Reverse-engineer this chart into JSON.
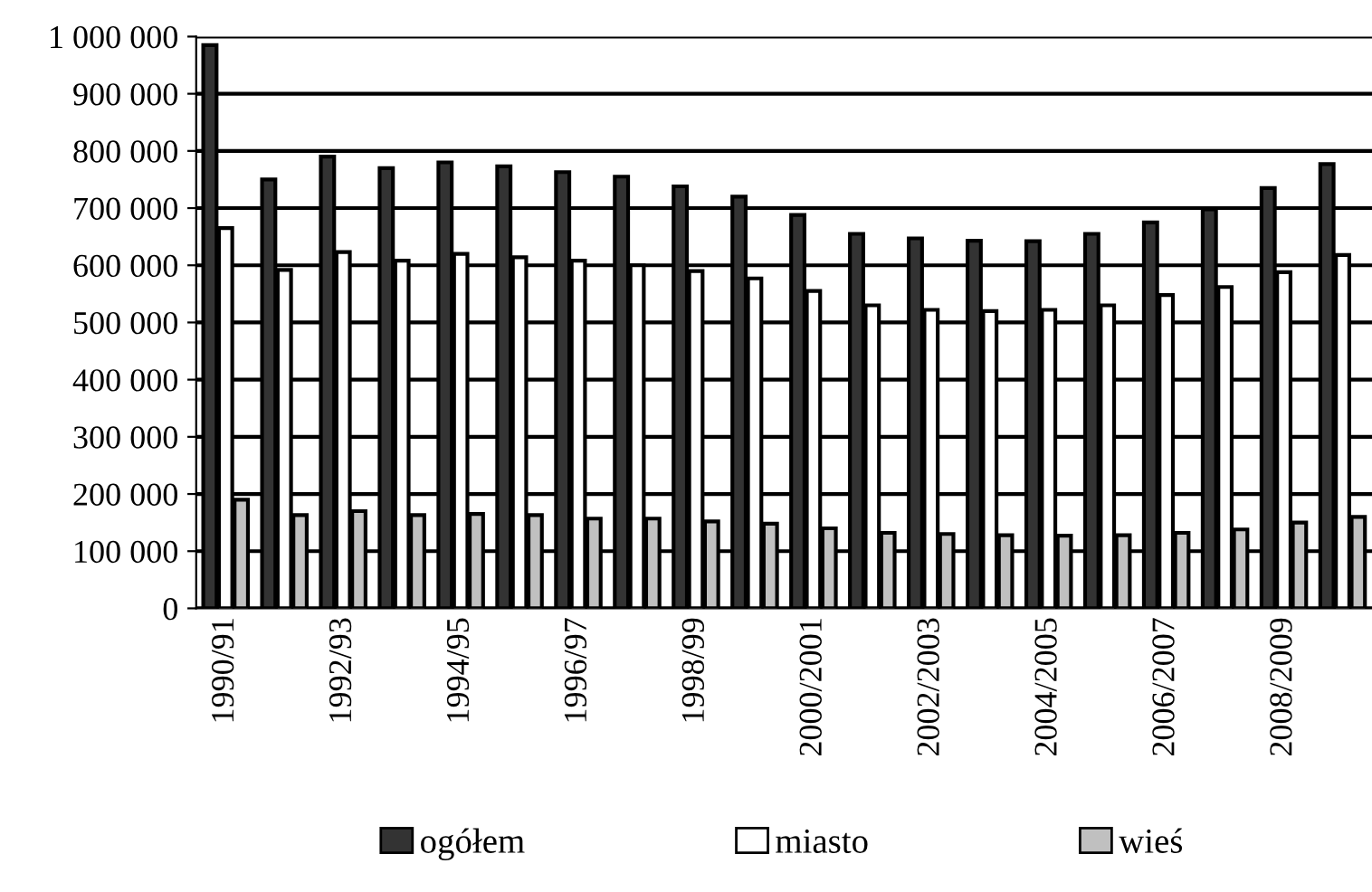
{
  "chart_data": {
    "type": "bar",
    "categories": [
      "1990/91",
      null,
      "1992/93",
      null,
      "1994/95",
      null,
      "1996/97",
      null,
      "1998/99",
      null,
      "2000/2001",
      null,
      "2002/2003",
      null,
      "2004/2005",
      null,
      "2006/2007",
      null,
      "2008/2009",
      null
    ],
    "series": [
      {
        "name": "ogółem",
        "color": "#333333",
        "values": [
          985000,
          750000,
          790000,
          770000,
          780000,
          773000,
          763000,
          755000,
          738000,
          720000,
          688000,
          655000,
          647000,
          643000,
          642000,
          655000,
          675000,
          698000,
          735000,
          777000
        ]
      },
      {
        "name": "miasto",
        "color": "#ffffff",
        "values": [
          665000,
          592000,
          623000,
          608000,
          620000,
          614000,
          608000,
          600000,
          590000,
          577000,
          555000,
          530000,
          522000,
          520000,
          522000,
          530000,
          548000,
          562000,
          588000,
          618000
        ]
      },
      {
        "name": "wieś",
        "color": "#c0c0c0",
        "values": [
          190000,
          163000,
          170000,
          163000,
          165000,
          163000,
          157000,
          157000,
          152000,
          148000,
          140000,
          132000,
          130000,
          128000,
          127000,
          128000,
          132000,
          138000,
          150000,
          160000
        ]
      }
    ],
    "ylim": [
      0,
      1000000
    ],
    "yticks": [
      0,
      {
        "value": 100000,
        "label": "100 000"
      },
      {
        "value": 200000,
        "label": "200 000"
      },
      {
        "value": 300000,
        "label": "300 000"
      },
      {
        "value": 400000,
        "label": "400 000"
      },
      {
        "value": 500000,
        "label": "500 000"
      },
      {
        "value": 600000,
        "label": "600 000"
      },
      {
        "value": 700000,
        "label": "700 000"
      },
      {
        "value": 800000,
        "label": "800 000"
      },
      {
        "value": 900000,
        "label": "900 000"
      },
      {
        "value": 1000000,
        "label": "1 000 000"
      }
    ],
    "grid": "y",
    "legend": "bottom"
  }
}
